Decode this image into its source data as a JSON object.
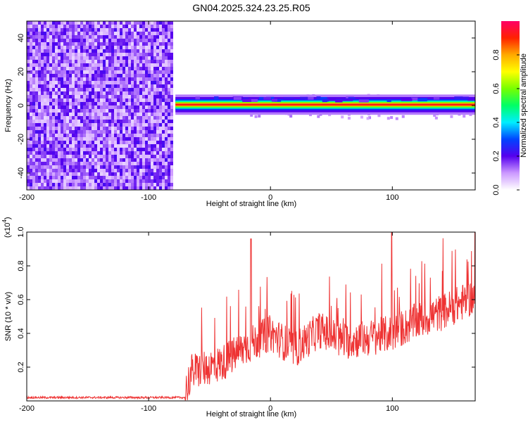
{
  "title": "GN04.2025.324.23.25.R05",
  "chart_data": [
    {
      "type": "heatmap",
      "xlabel": "Height of straight line (km)",
      "ylabel": "Frequency (Hz)",
      "xlim": [
        -200,
        168
      ],
      "ylim": [
        -50,
        50
      ],
      "xticks": [
        -200,
        -100,
        0,
        100
      ],
      "yticks": [
        40,
        20,
        0,
        -20,
        -40
      ],
      "noise_region_x": [
        -200,
        -80
      ],
      "signal_band": {
        "x_start": -78,
        "x_end": 168,
        "freq_center": 0.5,
        "freq_halfwidth": 2
      },
      "colorbar": {
        "label": "Normalized spectral amplitude",
        "range": [
          0.0,
          1.0
        ],
        "ticks": [
          0.0,
          0.2,
          0.4,
          0.6,
          0.8
        ],
        "tick_labels": [
          "0.0",
          "0.2",
          "0.4",
          "0.6",
          "0.8"
        ]
      }
    },
    {
      "type": "line",
      "xlabel": "Height of straight line (km)",
      "ylabel": "SNR (10 * v/v)",
      "yscale_label": "(x10",
      "yscale_exp": "4",
      "yscale_close": ")",
      "xlim": [
        -200,
        168
      ],
      "ylim": [
        0,
        1.0
      ],
      "xticks": [
        -200,
        -100,
        0,
        100
      ],
      "yticks": [
        0.2,
        0.4,
        0.6,
        0.8,
        1.0
      ],
      "color": "#ee3333",
      "series_trend": {
        "x": [
          -200,
          -70,
          -65,
          -40,
          -20,
          0,
          20,
          40,
          60,
          80,
          100,
          120,
          140,
          168
        ],
        "y": [
          0.02,
          0.02,
          0.15,
          0.2,
          0.3,
          0.38,
          0.28,
          0.4,
          0.33,
          0.35,
          0.38,
          0.45,
          0.5,
          0.6
        ]
      }
    }
  ]
}
